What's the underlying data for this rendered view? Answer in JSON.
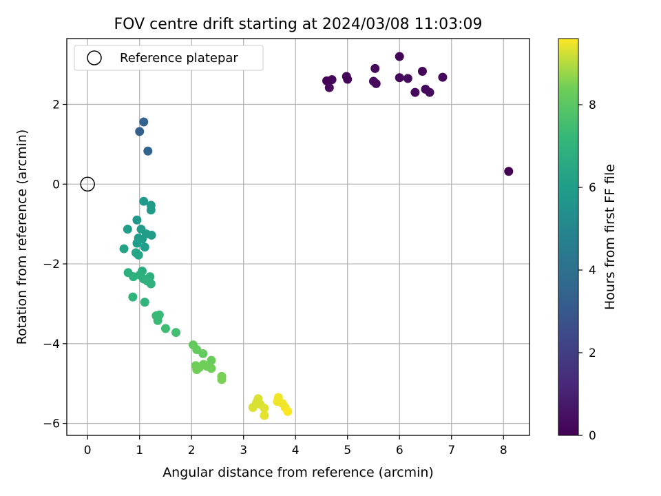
{
  "chart_data": {
    "type": "scatter",
    "title": "FOV centre drift starting at 2024/03/08 11:03:09",
    "xlabel": "Angular distance from reference (arcmin)",
    "ylabel": "Rotation from reference (arcmin)",
    "xlim": [
      -0.4,
      8.5
    ],
    "ylim": [
      -6.3,
      3.65
    ],
    "xticks": [
      0,
      1,
      2,
      3,
      4,
      5,
      6,
      7,
      8
    ],
    "yticks": [
      -6,
      -4,
      -2,
      0,
      2
    ],
    "grid": true,
    "legend": {
      "placement": "top-left",
      "entries": [
        {
          "label": "Reference platepar",
          "marker": "open-circle"
        }
      ]
    },
    "reference_point": {
      "x": 0,
      "y": 0
    },
    "colorbar": {
      "label": "Hours from first FF file",
      "range": [
        0,
        9.6
      ],
      "ticks": [
        0,
        2,
        4,
        6,
        8
      ],
      "colormap": "viridis"
    },
    "points": [
      {
        "x": 4.6,
        "y": 2.59,
        "c": 0.1
      },
      {
        "x": 4.65,
        "y": 2.42,
        "c": 0.2
      },
      {
        "x": 4.7,
        "y": 2.62,
        "c": 0.15
      },
      {
        "x": 4.98,
        "y": 2.7,
        "c": 0.2
      },
      {
        "x": 5.0,
        "y": 2.63,
        "c": 0.1
      },
      {
        "x": 5.5,
        "y": 2.58,
        "c": 0.3
      },
      {
        "x": 5.53,
        "y": 2.9,
        "c": 0.2
      },
      {
        "x": 5.55,
        "y": 2.52,
        "c": 0.25
      },
      {
        "x": 6.0,
        "y": 3.2,
        "c": 0.1
      },
      {
        "x": 6.0,
        "y": 2.67,
        "c": 0.2
      },
      {
        "x": 6.16,
        "y": 2.65,
        "c": 0.3
      },
      {
        "x": 6.3,
        "y": 2.3,
        "c": 0.2
      },
      {
        "x": 6.44,
        "y": 2.83,
        "c": 0.15
      },
      {
        "x": 6.5,
        "y": 2.38,
        "c": 0.25
      },
      {
        "x": 6.58,
        "y": 2.3,
        "c": 0.3
      },
      {
        "x": 6.83,
        "y": 2.68,
        "c": 0.2
      },
      {
        "x": 8.1,
        "y": 0.32,
        "c": 0.0
      },
      {
        "x": 1.08,
        "y": 1.56,
        "c": 3.4
      },
      {
        "x": 1.0,
        "y": 1.32,
        "c": 3.3
      },
      {
        "x": 1.16,
        "y": 0.83,
        "c": 3.5
      },
      {
        "x": 1.08,
        "y": -0.43,
        "c": 5.8
      },
      {
        "x": 1.22,
        "y": -0.53,
        "c": 5.9
      },
      {
        "x": 1.22,
        "y": -0.65,
        "c": 5.9
      },
      {
        "x": 0.95,
        "y": -0.9,
        "c": 5.8
      },
      {
        "x": 0.77,
        "y": -1.13,
        "c": 6.0
      },
      {
        "x": 1.03,
        "y": -1.13,
        "c": 5.9
      },
      {
        "x": 1.13,
        "y": -1.25,
        "c": 5.9
      },
      {
        "x": 1.23,
        "y": -1.28,
        "c": 5.9
      },
      {
        "x": 0.98,
        "y": -1.35,
        "c": 5.9
      },
      {
        "x": 1.05,
        "y": -1.38,
        "c": 5.9
      },
      {
        "x": 0.95,
        "y": -1.48,
        "c": 6.0
      },
      {
        "x": 1.1,
        "y": -1.58,
        "c": 6.0
      },
      {
        "x": 0.7,
        "y": -1.62,
        "c": 6.2
      },
      {
        "x": 0.93,
        "y": -1.72,
        "c": 6.4
      },
      {
        "x": 0.98,
        "y": -1.78,
        "c": 6.4
      },
      {
        "x": 0.78,
        "y": -2.22,
        "c": 6.8
      },
      {
        "x": 0.88,
        "y": -2.32,
        "c": 6.8
      },
      {
        "x": 1.05,
        "y": -2.18,
        "c": 6.7
      },
      {
        "x": 1.0,
        "y": -2.28,
        "c": 6.8
      },
      {
        "x": 1.08,
        "y": -2.38,
        "c": 6.8
      },
      {
        "x": 1.2,
        "y": -2.32,
        "c": 6.8
      },
      {
        "x": 1.15,
        "y": -2.43,
        "c": 6.9
      },
      {
        "x": 1.22,
        "y": -2.5,
        "c": 6.9
      },
      {
        "x": 0.87,
        "y": -2.83,
        "c": 7.0
      },
      {
        "x": 1.1,
        "y": -2.96,
        "c": 7.0
      },
      {
        "x": 1.32,
        "y": -3.3,
        "c": 7.3
      },
      {
        "x": 1.38,
        "y": -3.28,
        "c": 7.3
      },
      {
        "x": 1.35,
        "y": -3.42,
        "c": 7.3
      },
      {
        "x": 1.5,
        "y": -3.62,
        "c": 7.4
      },
      {
        "x": 1.7,
        "y": -3.72,
        "c": 7.5
      },
      {
        "x": 2.03,
        "y": -4.03,
        "c": 8.2
      },
      {
        "x": 2.1,
        "y": -4.15,
        "c": 8.2
      },
      {
        "x": 2.22,
        "y": -4.25,
        "c": 8.2
      },
      {
        "x": 2.38,
        "y": -4.42,
        "c": 8.3
      },
      {
        "x": 2.08,
        "y": -4.55,
        "c": 8.4
      },
      {
        "x": 2.15,
        "y": -4.6,
        "c": 8.4
      },
      {
        "x": 2.23,
        "y": -4.52,
        "c": 8.4
      },
      {
        "x": 2.3,
        "y": -4.57,
        "c": 8.4
      },
      {
        "x": 2.38,
        "y": -4.62,
        "c": 8.4
      },
      {
        "x": 2.1,
        "y": -4.65,
        "c": 8.4
      },
      {
        "x": 2.58,
        "y": -4.82,
        "c": 8.5
      },
      {
        "x": 2.58,
        "y": -4.9,
        "c": 8.5
      },
      {
        "x": 3.28,
        "y": -5.38,
        "c": 9.3
      },
      {
        "x": 3.25,
        "y": -5.48,
        "c": 9.3
      },
      {
        "x": 3.32,
        "y": -5.52,
        "c": 9.3
      },
      {
        "x": 3.18,
        "y": -5.6,
        "c": 9.3
      },
      {
        "x": 3.4,
        "y": -5.62,
        "c": 9.35
      },
      {
        "x": 3.4,
        "y": -5.8,
        "c": 9.4
      },
      {
        "x": 3.67,
        "y": -5.35,
        "c": 9.5
      },
      {
        "x": 3.65,
        "y": -5.45,
        "c": 9.5
      },
      {
        "x": 3.75,
        "y": -5.5,
        "c": 9.5
      },
      {
        "x": 3.8,
        "y": -5.6,
        "c": 9.5
      },
      {
        "x": 3.85,
        "y": -5.7,
        "c": 9.6
      }
    ]
  }
}
